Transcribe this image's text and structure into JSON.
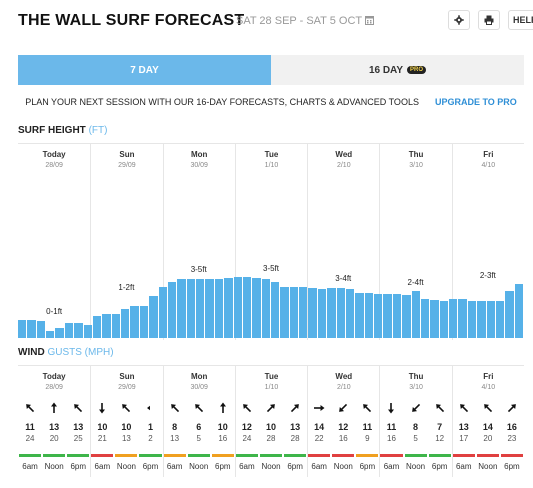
{
  "header": {
    "title": "THE WALL SURF FORECAST",
    "date_range": "SAT 28 SEP - SAT 5 OCT",
    "help_label": "HELP",
    "icons": [
      "calendar-icon",
      "gear-icon",
      "print-icon"
    ]
  },
  "tabs": [
    {
      "label": "7 DAY",
      "active": true
    },
    {
      "label": "16 DAY",
      "badge": "PRO",
      "active": false
    }
  ],
  "promo": {
    "text": "PLAN YOUR NEXT SESSION WITH OUR 16-DAY FORECASTS, CHARTS & ADVANCED TOOLS",
    "link": "UPGRADE TO PRO"
  },
  "surf": {
    "title": "SURF HEIGHT",
    "unit": "(FT)"
  },
  "wind": {
    "title": "WIND",
    "unit": "GUSTS (MPH)"
  },
  "days": [
    {
      "name": "Today",
      "date": "28/09"
    },
    {
      "name": "Sun",
      "date": "29/09"
    },
    {
      "name": "Mon",
      "date": "30/09"
    },
    {
      "name": "Tue",
      "date": "1/10"
    },
    {
      "name": "Wed",
      "date": "2/10"
    },
    {
      "name": "Thu",
      "date": "3/10"
    },
    {
      "name": "Fri",
      "date": "4/10"
    }
  ],
  "times": [
    "6am",
    "Noon",
    "6pm"
  ],
  "colors": {
    "accent": "#6bb8ea",
    "bar": "#56b1e8",
    "rating_good": "#3eb54a",
    "rating_fair": "#f0a020",
    "rating_poor": "#e04040"
  },
  "chart_data": {
    "type": "bar",
    "title": "SURF HEIGHT",
    "ylabel": "FT",
    "ylim": [
      0,
      6
    ],
    "values": [
      0.75,
      0.75,
      0.7,
      0.3,
      0.4,
      0.6,
      0.6,
      0.55,
      0.9,
      1.0,
      1.0,
      1.2,
      1.3,
      1.3,
      1.7,
      2.1,
      2.3,
      2.4,
      2.4,
      2.4,
      2.4,
      2.4,
      2.45,
      2.5,
      2.5,
      2.45,
      2.4,
      2.3,
      2.1,
      2.1,
      2.1,
      2.05,
      2.0,
      2.05,
      2.05,
      2.0,
      1.85,
      1.85,
      1.8,
      1.8,
      1.8,
      1.75,
      1.9,
      1.6,
      1.55,
      1.5,
      1.6,
      1.6,
      1.5,
      1.5,
      1.5,
      1.5,
      1.9,
      2.2
    ],
    "day_ranges": [
      "0-1ft",
      "1-2ft",
      "3-5ft",
      "3-5ft",
      "3-4ft",
      "2-4ft",
      "2-3ft"
    ]
  },
  "wind_data": {
    "speeds": [
      [
        11,
        13,
        13
      ],
      [
        10,
        10,
        1
      ],
      [
        8,
        6,
        10
      ],
      [
        12,
        10,
        13
      ],
      [
        14,
        12,
        11
      ],
      [
        11,
        8,
        7
      ],
      [
        13,
        14,
        16
      ]
    ],
    "gusts": [
      [
        24,
        20,
        25
      ],
      [
        21,
        13,
        2
      ],
      [
        13,
        5,
        16
      ],
      [
        24,
        28,
        28
      ],
      [
        22,
        16,
        9
      ],
      [
        16,
        5,
        12
      ],
      [
        17,
        20,
        23
      ]
    ],
    "directions": [
      [
        "northwest",
        "north",
        "northwest"
      ],
      [
        "south",
        "northwest",
        "west"
      ],
      [
        "northwest",
        "northwest",
        "north"
      ],
      [
        "northwest",
        "northeast",
        "northeast"
      ],
      [
        "east",
        "southwest",
        "northwest"
      ],
      [
        "south",
        "southwest",
        "northwest"
      ],
      [
        "northwest",
        "northwest",
        "northeast"
      ]
    ],
    "ratings": [
      [
        "good",
        "good",
        "good"
      ],
      [
        "poor",
        "fair",
        "good"
      ],
      [
        "fair",
        "good",
        "fair"
      ],
      [
        "good",
        "good",
        "good"
      ],
      [
        "poor",
        "poor",
        "fair"
      ],
      [
        "poor",
        "good",
        "good"
      ],
      [
        "poor",
        "poor",
        "poor"
      ]
    ]
  }
}
